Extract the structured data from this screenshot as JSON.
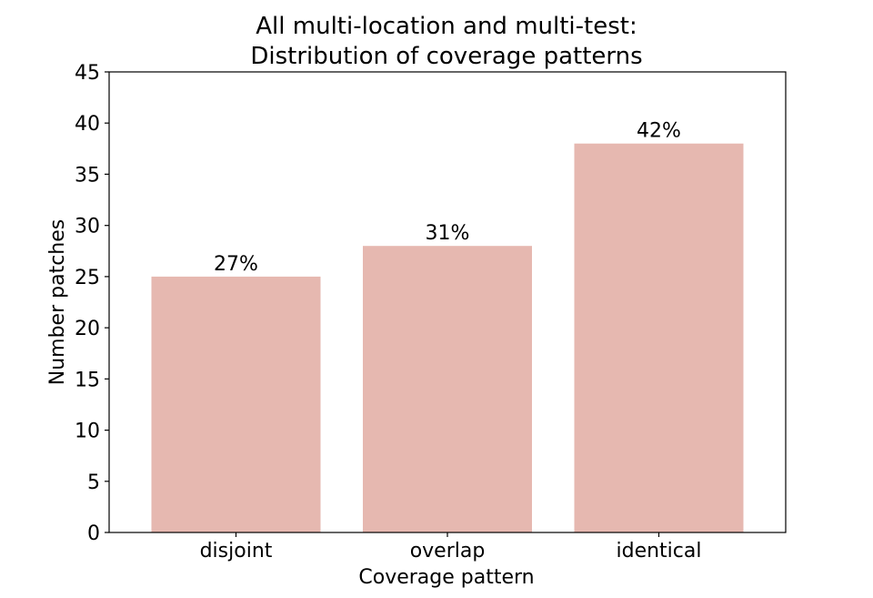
{
  "chart_data": {
    "type": "bar",
    "title": "All multi-location and multi-test:\nDistribution of coverage patterns",
    "title_lines": [
      "All multi-location and multi-test:",
      "Distribution of coverage patterns"
    ],
    "xlabel": "Coverage pattern",
    "ylabel": "Number patches",
    "categories": [
      "disjoint",
      "overlap",
      "identical"
    ],
    "values": [
      25,
      28,
      38
    ],
    "bar_labels": [
      "27%",
      "31%",
      "42%"
    ],
    "ylim": [
      0,
      45
    ],
    "yticks": [
      0,
      5,
      10,
      15,
      20,
      25,
      30,
      35,
      40,
      45
    ],
    "ytick_labels": [
      "0",
      "5",
      "10",
      "15",
      "20",
      "25",
      "30",
      "35",
      "40",
      "45"
    ],
    "grid": false,
    "legend": "none",
    "bar_color": "#e6b8b0"
  }
}
